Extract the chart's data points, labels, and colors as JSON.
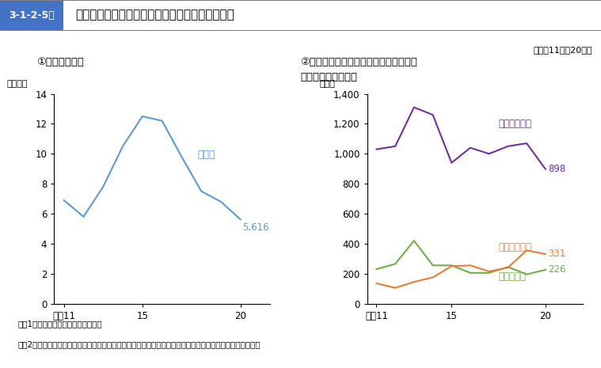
{
  "title_box_label": "3-1-2-5図",
  "title_main": "来日外国人による入管法違反等　送致件数の推移",
  "subtitle": "（平成11年〜20年）",
  "note1": "注　1　警察庁刑事局の資料による。",
  "note2": "　　2　「薬物関係法令」は，覚せい剤取締法，大麻取締法，麻薬取締法，あへん法及び麻薬特例法である。",
  "chart1_title": "①　入管法違反",
  "chart1_ylabel": "（千件）",
  "chart1_years": [
    11,
    12,
    13,
    14,
    15,
    16,
    17,
    18,
    19,
    20
  ],
  "chart1_data": [
    6.9,
    5.8,
    7.8,
    10.5,
    12.5,
    12.2,
    9.8,
    7.5,
    6.8,
    5.616
  ],
  "chart1_line_color": "#5b9bd5",
  "chart1_label": "入管法",
  "chart1_last_value": "5,616",
  "chart1_ylim": [
    0,
    14
  ],
  "chart1_yticks": [
    0,
    2,
    4,
    6,
    8,
    10,
    12,
    14
  ],
  "chart2_title_line1": "②　薬物関係法令違反・売春防止法違反",
  "chart2_title_line2": "・風営適正化法違反",
  "chart2_ylabel": "（件）",
  "chart2_years": [
    11,
    12,
    13,
    14,
    15,
    16,
    17,
    18,
    19,
    20
  ],
  "chart2_yakubutsu": [
    1030,
    1050,
    1310,
    1260,
    940,
    1040,
    1000,
    1050,
    1070,
    898
  ],
  "chart2_baisyun": [
    230,
    265,
    420,
    255,
    255,
    205,
    205,
    245,
    195,
    226
  ],
  "chart2_fuuei": [
    135,
    105,
    145,
    175,
    250,
    255,
    215,
    240,
    355,
    331
  ],
  "chart2_yakubutsu_color": "#7030a0",
  "chart2_baisyun_color": "#70ad47",
  "chart2_fuuei_color": "#ed7d31",
  "chart2_yakubutsu_label": "薬物関係法令",
  "chart2_baisyun_label": "売春防止法",
  "chart2_fuuei_label": "風営適正化法",
  "chart2_yakubutsu_last": "898",
  "chart2_baisyun_last": "226",
  "chart2_fuuei_last": "331",
  "chart2_ylim": [
    0,
    1400
  ],
  "chart2_yticks": [
    0,
    200,
    400,
    600,
    800,
    1000,
    1200,
    1400
  ],
  "chart2_ytick_labels": [
    "0",
    "200",
    "400",
    "600",
    "800",
    "1,000",
    "1,200",
    "1,400"
  ],
  "background_color": "#ffffff",
  "header_bg_color": "#d9d9d9",
  "header_box_color": "#4472c4",
  "header_box_text_color": "#ffffff",
  "border_color": "#808080"
}
